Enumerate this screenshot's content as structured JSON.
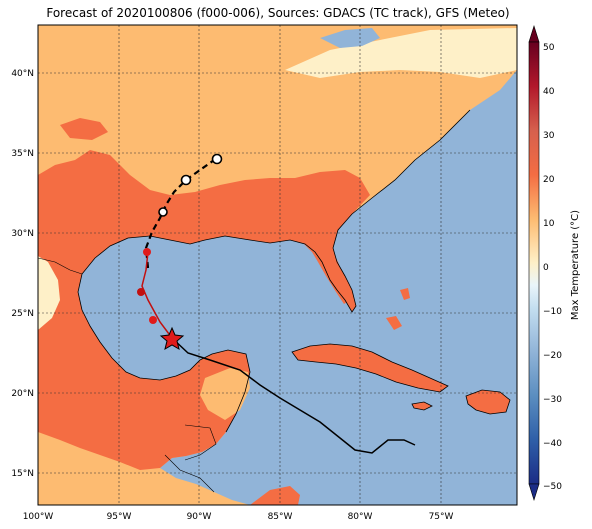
{
  "title": "Forecast of 2020100806 (f000-006), Sources: GDACS (TC track), GFS (Meteo)",
  "axes": {
    "lon_ticks": [
      "100°W",
      "95°W",
      "90°W",
      "85°W",
      "80°W",
      "75°W"
    ],
    "lat_ticks": [
      "40°N",
      "35°N",
      "30°N",
      "25°N",
      "20°N",
      "15°N"
    ]
  },
  "colorbar": {
    "label": "Max Temperature (°C)",
    "ticks": [
      "50",
      "40",
      "30",
      "20",
      "10",
      "0",
      "−10",
      "−20",
      "−30",
      "−40",
      "−50"
    ]
  },
  "colors": {
    "water": "#91b4d8",
    "band_10_20": "#fdbb71",
    "band_20_30": "#f46d43",
    "band_0_10": "#fef0c8",
    "track_marker": "#e01b1b"
  },
  "legend": {}
}
